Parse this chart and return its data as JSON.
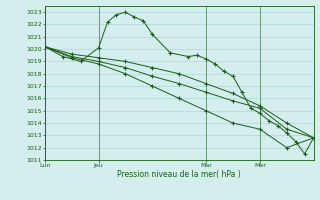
{
  "xlabel": "Pression niveau de la mer( hPa )",
  "ylim": [
    1011,
    1023.5
  ],
  "yticks": [
    1011,
    1012,
    1013,
    1014,
    1015,
    1016,
    1017,
    1018,
    1019,
    1020,
    1021,
    1022,
    1023
  ],
  "xtick_labels": [
    "Lun",
    "Jeu",
    "Mar",
    "Mer"
  ],
  "xtick_positions": [
    0,
    6,
    18,
    24
  ],
  "xlim": [
    0,
    30
  ],
  "background_color": "#d4eeee",
  "line_color": "#1a5c1a",
  "grid_color": "#aad0d0",
  "line1_x": [
    0,
    2,
    4,
    6,
    7,
    8,
    9,
    10,
    11,
    12,
    14,
    16,
    17,
    18,
    19,
    20,
    21,
    22,
    23,
    24,
    25,
    26,
    27,
    28,
    29,
    30
  ],
  "line1_y": [
    1020.2,
    1019.4,
    1019.0,
    1020.1,
    1022.2,
    1022.8,
    1023.0,
    1022.6,
    1022.3,
    1021.2,
    1019.7,
    1019.4,
    1019.5,
    1019.2,
    1018.8,
    1018.2,
    1017.8,
    1016.5,
    1015.2,
    1014.8,
    1014.2,
    1013.8,
    1013.2,
    1012.5,
    1011.5,
    1012.8
  ],
  "line2_x": [
    0,
    3,
    6,
    9,
    12,
    15,
    18,
    21,
    24,
    27,
    30
  ],
  "line2_y": [
    1020.2,
    1019.6,
    1019.3,
    1019.0,
    1018.5,
    1018.0,
    1017.2,
    1016.4,
    1015.4,
    1014.0,
    1012.8
  ],
  "line3_x": [
    0,
    3,
    6,
    9,
    12,
    15,
    18,
    21,
    24,
    27,
    30
  ],
  "line3_y": [
    1020.2,
    1019.4,
    1019.0,
    1018.5,
    1017.8,
    1017.2,
    1016.5,
    1015.8,
    1015.2,
    1013.5,
    1012.8
  ],
  "line4_x": [
    0,
    3,
    6,
    9,
    12,
    15,
    18,
    21,
    24,
    27,
    30
  ],
  "line4_y": [
    1020.2,
    1019.3,
    1018.8,
    1018.0,
    1017.0,
    1016.0,
    1015.0,
    1014.0,
    1013.5,
    1012.0,
    1012.8
  ]
}
